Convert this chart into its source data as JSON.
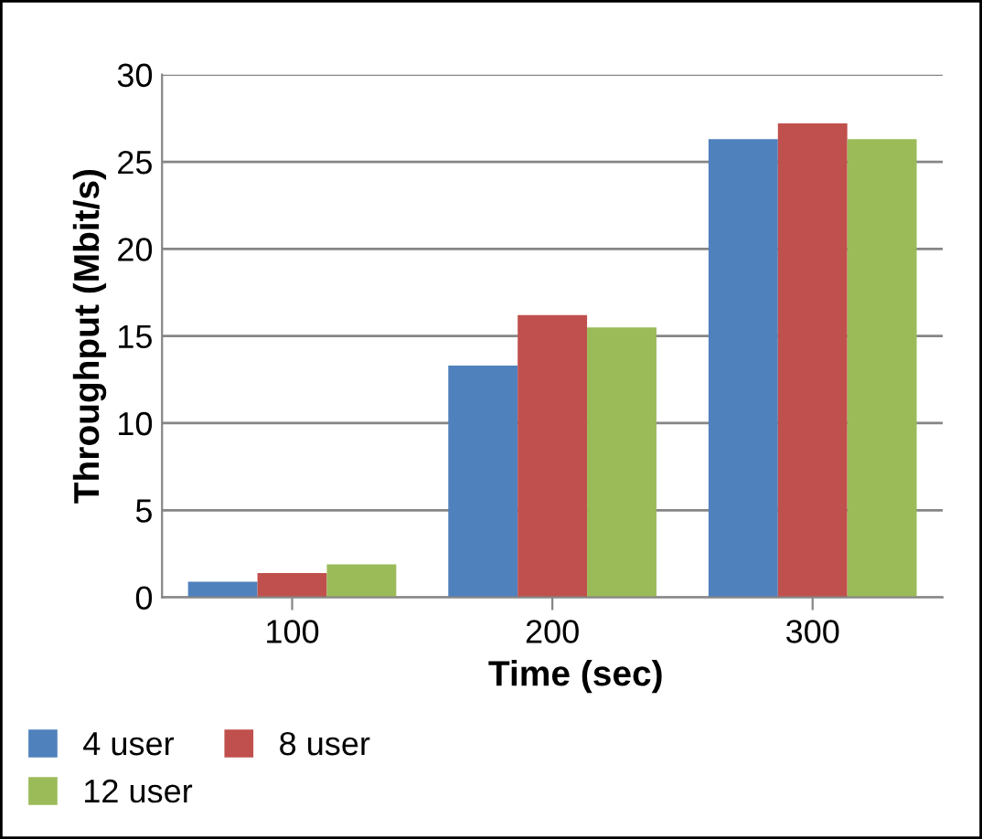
{
  "chart_data": {
    "type": "bar",
    "xlabel": "Time (sec)",
    "ylabel": "Throughput (Mbit/s)",
    "categories": [
      "100",
      "200",
      "300"
    ],
    "series": [
      {
        "name": "4 user",
        "color": "#4f81bd",
        "values": [
          0.9,
          13.3,
          26.3
        ]
      },
      {
        "name": "8 user",
        "color": "#c0504d",
        "values": [
          1.4,
          16.2,
          27.2
        ]
      },
      {
        "name": "12 user",
        "color": "#9bbb59",
        "values": [
          1.9,
          15.5,
          26.3
        ]
      }
    ],
    "ylim": [
      0,
      30
    ],
    "yticks": [
      0,
      5,
      10,
      15,
      20,
      25,
      30
    ],
    "grid": "y",
    "legend": "bottom left"
  }
}
